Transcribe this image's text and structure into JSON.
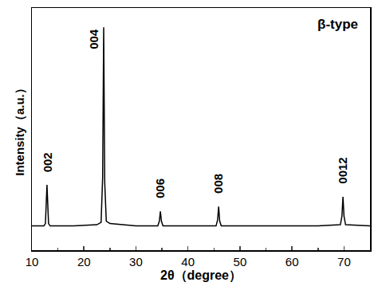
{
  "chart_data": {
    "type": "line",
    "xlabel": "2θ（degree）",
    "ylabel": "Intensity（a.u.）",
    "x": [
      10,
      12.3,
      12.6,
      12.75,
      12.9,
      13.05,
      13.2,
      13.5,
      18,
      22.5,
      23.3,
      23.6,
      23.8,
      24.0,
      24.3,
      25,
      30,
      34.2,
      34.5,
      34.7,
      34.9,
      35.2,
      40,
      45.4,
      45.7,
      45.9,
      46.1,
      46.4,
      55,
      65,
      69.3,
      69.6,
      69.8,
      70.0,
      70.3,
      75
    ],
    "values": [
      10,
      10,
      11,
      20,
      27,
      19,
      11,
      10,
      10,
      10.5,
      11.5,
      30,
      92,
      28,
      12,
      11,
      10,
      10,
      12,
      16,
      12,
      10,
      10,
      10,
      12.5,
      18,
      12,
      10,
      10,
      10,
      10.5,
      14,
      22,
      14,
      10.5,
      10
    ],
    "color": "#000000",
    "xlim": [
      10,
      75
    ],
    "xticks": [
      10,
      20,
      30,
      40,
      50,
      60,
      70
    ],
    "ylim": [
      0,
      100
    ],
    "yticks": [],
    "tick_labels": "x",
    "grid": false,
    "annotations": [
      {
        "text": "002",
        "x": 12.9,
        "y": 27
      },
      {
        "text": "004",
        "x": 23.8,
        "y": 92
      },
      {
        "text": "006",
        "x": 34.7,
        "y": 16
      },
      {
        "text": "008",
        "x": 45.9,
        "y": 18
      },
      {
        "text": "0012",
        "x": 69.8,
        "y": 22
      },
      {
        "text": "β-type"
      }
    ]
  }
}
